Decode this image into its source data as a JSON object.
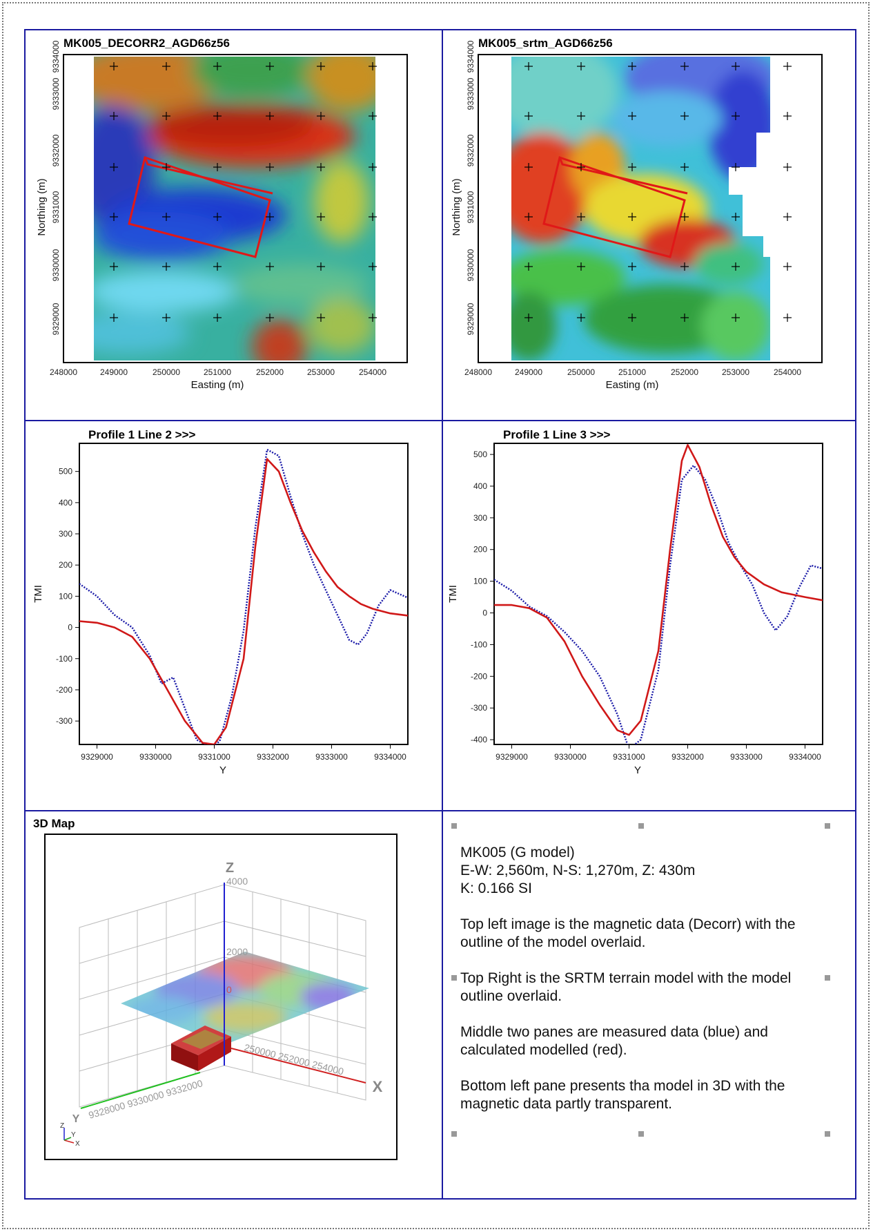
{
  "maps": {
    "decorr": {
      "title": "MK005_DECORR2_AGD66z56",
      "xlabel": "Easting (m)",
      "ylabel": "Northing (m)",
      "xticks": [
        "248000",
        "249000",
        "250000",
        "251000",
        "252000",
        "253000",
        "254000"
      ],
      "yticks": [
        "9329000",
        "9330000",
        "9331000",
        "9332000",
        "9333000",
        "9334000"
      ],
      "xlim": [
        248000,
        254000
      ],
      "ylim": [
        9328500,
        9334300
      ]
    },
    "srtm": {
      "title": "MK005_srtm_AGD66z56",
      "xlabel": "Easting (m)",
      "ylabel": "Northing (m)",
      "xticks": [
        "248000",
        "249000",
        "250000",
        "251000",
        "252000",
        "253000",
        "254000"
      ],
      "yticks": [
        "9329000",
        "9330000",
        "9331000",
        "9332000",
        "9333000",
        "9334000"
      ],
      "xlim": [
        248000,
        254000
      ],
      "ylim": [
        9328500,
        9334300
      ]
    }
  },
  "chart_data": [
    {
      "type": "line",
      "title": "Profile 1   Line 2 >>>",
      "xlabel": "Y",
      "ylabel": "TMI",
      "xlim": [
        9328700,
        9334300
      ],
      "ylim": [
        -375,
        590
      ],
      "xticks": [
        9329000,
        9330000,
        9331000,
        9332000,
        9333000,
        9334000
      ],
      "yticks": [
        -300,
        -200,
        -100,
        0,
        100,
        200,
        300,
        400,
        500
      ],
      "series": [
        {
          "color": "#1a1aa8",
          "style": "dotted",
          "x": [
            9328700,
            9329000,
            9329300,
            9329600,
            9329900,
            9330100,
            9330300,
            9330500,
            9330700,
            9330900,
            9331000,
            9331100,
            9331300,
            9331500,
            9331700,
            9331900,
            9332100,
            9332300,
            9332500,
            9332700,
            9332900,
            9333100,
            9333300,
            9333450,
            9333600,
            9333800,
            9334000,
            9334300
          ],
          "y": [
            140,
            100,
            40,
            0,
            -90,
            -180,
            -160,
            -260,
            -360,
            -380,
            -385,
            -360,
            -220,
            -10,
            320,
            570,
            550,
            420,
            300,
            200,
            120,
            40,
            -40,
            -55,
            -20,
            70,
            120,
            95
          ]
        },
        {
          "color": "#d01818",
          "style": "solid",
          "x": [
            9328700,
            9329000,
            9329300,
            9329600,
            9329900,
            9330200,
            9330500,
            9330800,
            9331000,
            9331200,
            9331500,
            9331700,
            9331900,
            9332100,
            9332300,
            9332500,
            9332700,
            9332900,
            9333100,
            9333300,
            9333500,
            9333700,
            9334000,
            9334300
          ],
          "y": [
            20,
            15,
            0,
            -30,
            -100,
            -200,
            -300,
            -370,
            -375,
            -320,
            -100,
            260,
            540,
            500,
            400,
            310,
            240,
            180,
            130,
            100,
            75,
            60,
            45,
            38
          ]
        }
      ]
    },
    {
      "type": "line",
      "title": "Profile 1   Line 3 >>>",
      "xlabel": "Y",
      "ylabel": "TMI",
      "xlim": [
        9328700,
        9334300
      ],
      "ylim": [
        -415,
        535
      ],
      "xticks": [
        9329000,
        9330000,
        9331000,
        9332000,
        9333000,
        9334000
      ],
      "yticks": [
        -400,
        -300,
        -200,
        -100,
        0,
        100,
        200,
        300,
        400,
        500
      ],
      "series": [
        {
          "color": "#1a1aa8",
          "style": "dotted",
          "x": [
            9328700,
            9329000,
            9329300,
            9329600,
            9329900,
            9330200,
            9330500,
            9330800,
            9331000,
            9331200,
            9331500,
            9331700,
            9331900,
            9332100,
            9332300,
            9332500,
            9332700,
            9332900,
            9333100,
            9333300,
            9333500,
            9333700,
            9333900,
            9334100,
            9334300
          ],
          "y": [
            105,
            70,
            20,
            -10,
            -60,
            -120,
            -200,
            -320,
            -430,
            -400,
            -180,
            150,
            420,
            465,
            420,
            330,
            220,
            150,
            90,
            0,
            -55,
            -10,
            80,
            150,
            140
          ]
        },
        {
          "color": "#d01818",
          "style": "solid",
          "x": [
            9328700,
            9329000,
            9329300,
            9329600,
            9329900,
            9330200,
            9330500,
            9330800,
            9331000,
            9331200,
            9331500,
            9331700,
            9331900,
            9332000,
            9332200,
            9332400,
            9332600,
            9332800,
            9333000,
            9333300,
            9333600,
            9334000,
            9334300
          ],
          "y": [
            25,
            25,
            15,
            -15,
            -90,
            -200,
            -290,
            -370,
            -385,
            -340,
            -120,
            200,
            480,
            530,
            460,
            340,
            240,
            175,
            130,
            90,
            65,
            50,
            40
          ]
        }
      ]
    }
  ],
  "map3d": {
    "title": "3D Map",
    "z_axis": "Z",
    "x_axis": "X",
    "y_axis": "Y",
    "z_ticks": [
      "4000",
      "2000",
      "0"
    ],
    "x_ticks": [
      "250000 252000 254000"
    ],
    "y_ticks": [
      "9328000 9330000 9332000"
    ],
    "axes_small": {
      "z": "Z",
      "y": "Y",
      "x": "X"
    }
  },
  "info": {
    "line1": "MK005 (G model)",
    "line2": "E-W: 2,560m, N-S: 1,270m, Z: 430m",
    "line3": "K: 0.166 SI",
    "para1": "Top left image is the magnetic data (Decorr) with the outline of the model overlaid.",
    "para2": "Top Right is the SRTM terrain model with the model outline overlaid.",
    "para3": "Middle two panes are measured data (blue) and calculated modelled (red).",
    "para4": "Bottom left pane presents tha model in 3D with the magnetic data partly transparent."
  }
}
